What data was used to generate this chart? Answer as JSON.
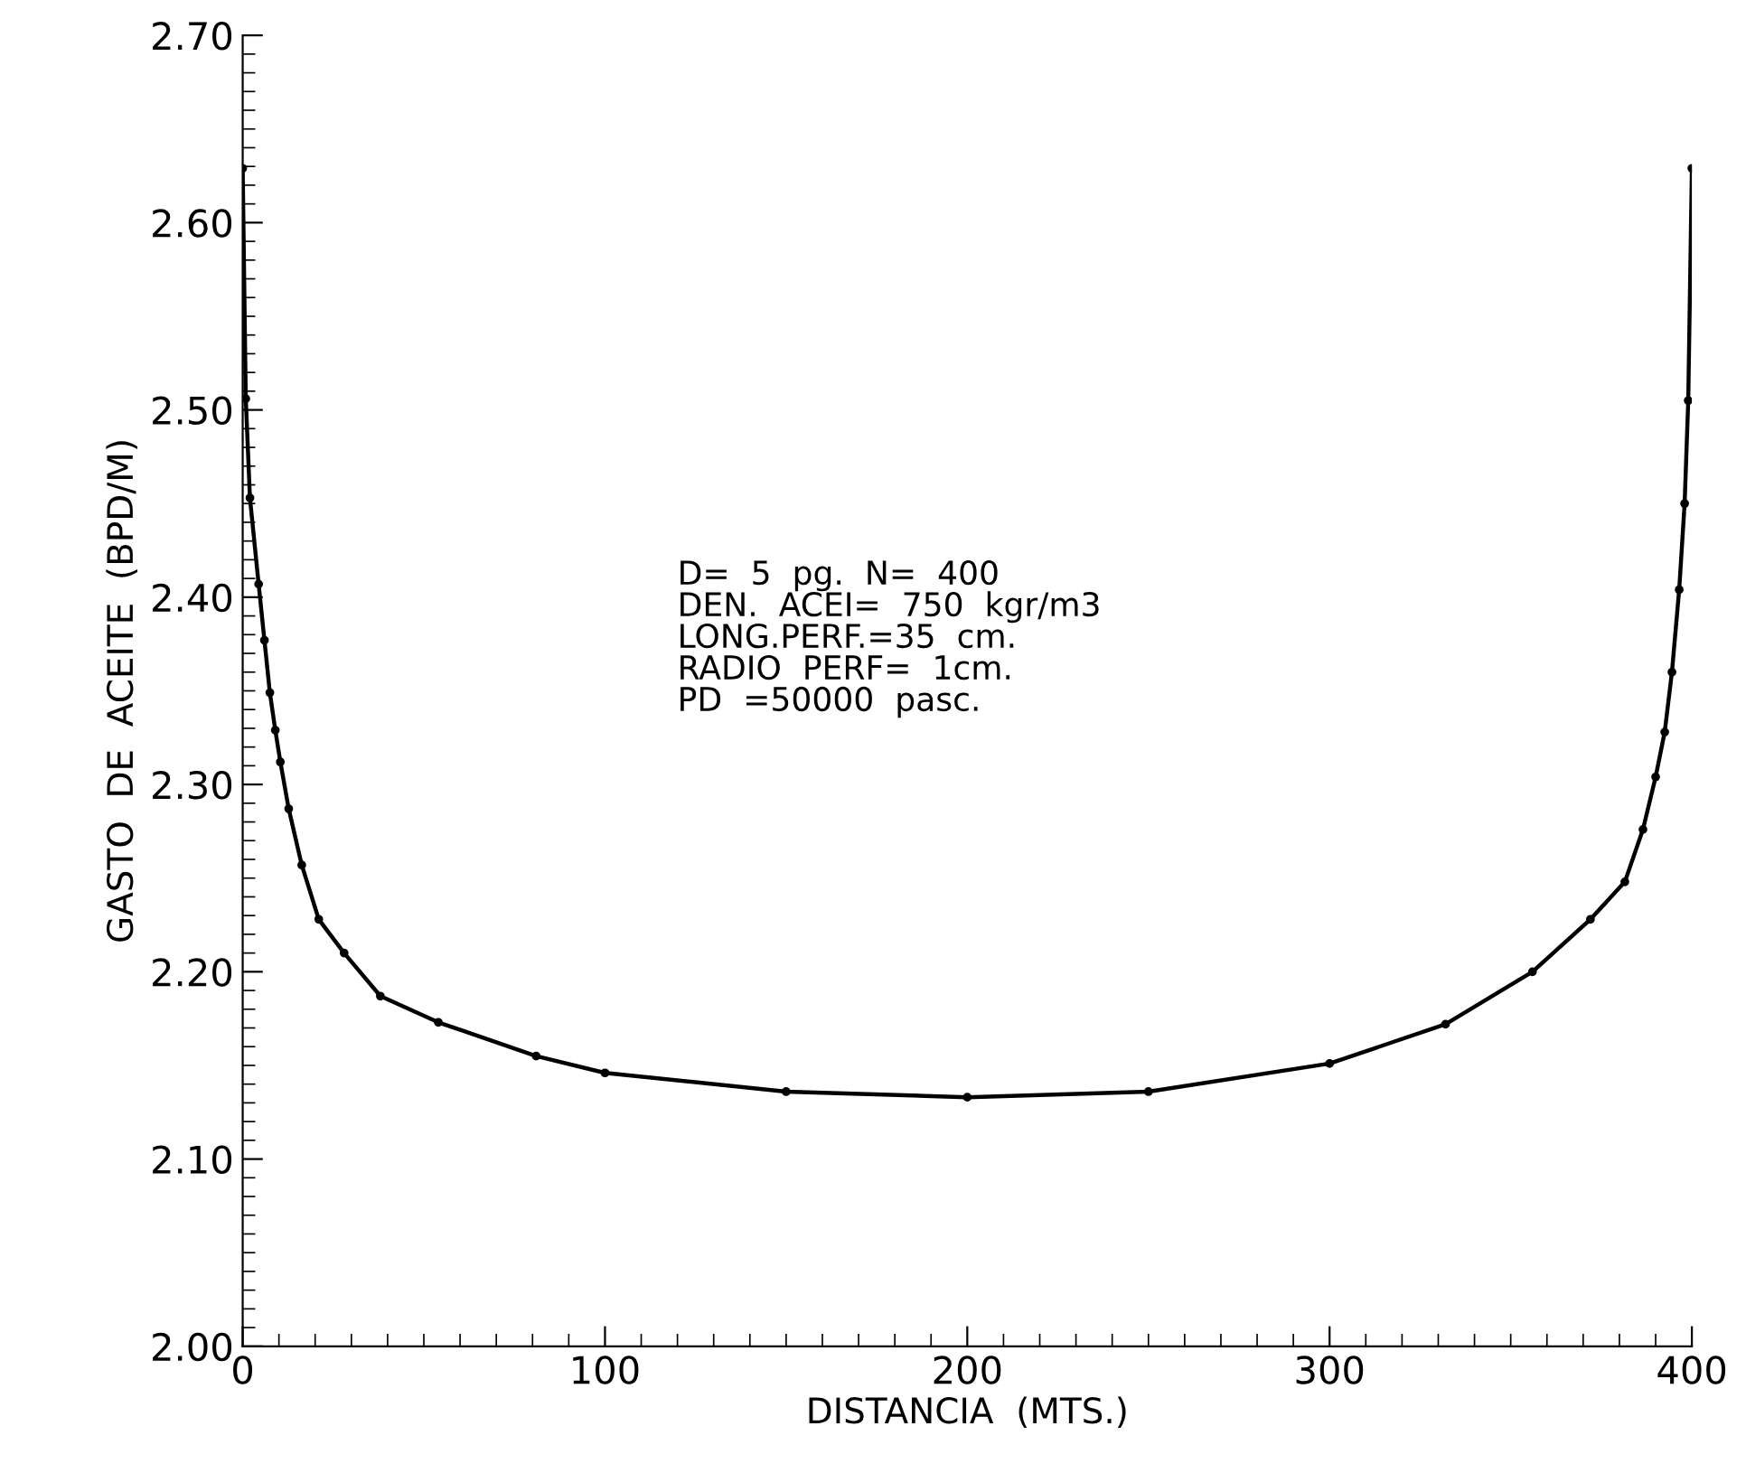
{
  "chart_data": {
    "type": "line",
    "xlabel": "DISTANCIA  (MTS.)",
    "ylabel": "GASTO  DE  ACEITE  (BPD/M)",
    "annotations": [
      "D=  5  pg.  N=  400\nDEN.  ACEI=  750  kgr/m3\nLONG.PERF.=35  cm.\nRADIO  PERF=  1cm.\nPD  =50000  pasc."
    ],
    "series": [
      {
        "color": "#000000",
        "x": [
          0,
          0.85,
          2,
          4.4,
          6,
          7.5,
          9,
          10.4,
          12.7,
          16.3,
          21,
          28,
          38,
          54,
          81,
          100,
          150,
          200,
          250,
          300,
          332,
          356,
          372,
          381.5,
          386.5,
          390,
          392.5,
          394.5,
          396.5,
          398,
          399,
          400
        ],
        "values": [
          2.629,
          2.506,
          2.453,
          2.407,
          2.377,
          2.349,
          2.329,
          2.312,
          2.287,
          2.257,
          2.228,
          2.21,
          2.187,
          2.173,
          2.155,
          2.146,
          2.136,
          2.133,
          2.136,
          2.151,
          2.172,
          2.2,
          2.228,
          2.248,
          2.276,
          2.304,
          2.328,
          2.36,
          2.404,
          2.45,
          2.505,
          2.629
        ]
      }
    ],
    "marker": "circle",
    "line_style": "solid",
    "grid": false,
    "xlim": [
      0,
      400
    ],
    "xticks": [
      0,
      100,
      200,
      300,
      400
    ],
    "ylim": [
      2.0,
      2.7
    ],
    "yticks": [
      {
        "value": 2.0,
        "label": "2.00"
      },
      {
        "value": 2.1,
        "label": "2.10"
      },
      {
        "value": 2.2,
        "label": "2.20"
      },
      {
        "value": 2.3,
        "label": "2.30"
      },
      {
        "value": 2.4,
        "label": "2.40"
      },
      {
        "value": 2.5,
        "label": "2.50"
      },
      {
        "value": 2.6,
        "label": "2.60"
      },
      {
        "value": 2.7,
        "label": "2.70"
      }
    ]
  }
}
